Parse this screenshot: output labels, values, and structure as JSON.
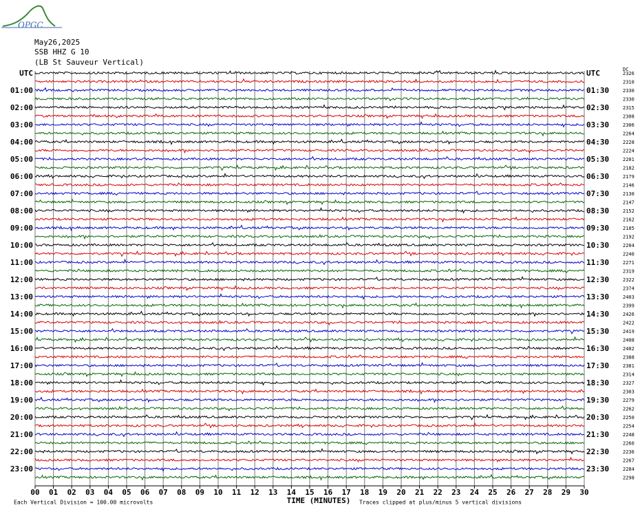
{
  "header": {
    "logo": "OPGC",
    "date": "May26,2025",
    "station": "SSB HHZ G 10",
    "location": "(LB St Sauveur Vertical)"
  },
  "left_labels": [
    "UTC",
    "01:00",
    "02:00",
    "03:00",
    "04:00",
    "05:00",
    "06:00",
    "07:00",
    "08:00",
    "09:00",
    "10:00",
    "11:00",
    "12:00",
    "13:00",
    "14:00",
    "15:00",
    "16:00",
    "17:00",
    "18:00",
    "19:00",
    "20:00",
    "21:00",
    "22:00",
    "23:00"
  ],
  "right_labels": [
    "UTC",
    "01:30",
    "02:30",
    "03:30",
    "04:30",
    "05:30",
    "06:30",
    "07:30",
    "08:30",
    "09:30",
    "10:30",
    "11:30",
    "12:30",
    "13:30",
    "14:30",
    "15:30",
    "16:30",
    "17:30",
    "18:30",
    "19:30",
    "20:30",
    "21:30",
    "22:30",
    "23:30"
  ],
  "dc_label": "DC",
  "offsets": [
    2326,
    2310,
    2330,
    2330,
    2315,
    2308,
    2306,
    2264,
    2228,
    2224,
    2201,
    2182,
    2179,
    2146,
    2130,
    2147,
    2152,
    2162,
    2185,
    2192,
    2204,
    2240,
    2271,
    2319,
    2322,
    2374,
    2403,
    2399,
    2426,
    2422,
    2419,
    2408,
    2402,
    2388,
    2381,
    2314,
    2327,
    2303,
    2279,
    2262,
    2250,
    2254,
    2248,
    2260,
    2236,
    2267,
    2284,
    2298
  ],
  "x_labels": [
    "00",
    "01",
    "02",
    "03",
    "04",
    "05",
    "06",
    "07",
    "08",
    "09",
    "10",
    "11",
    "12",
    "13",
    "14",
    "15",
    "16",
    "17",
    "18",
    "19",
    "20",
    "21",
    "22",
    "23",
    "24",
    "25",
    "26",
    "27",
    "28",
    "29",
    "30"
  ],
  "x_title": "TIME (MINUTES)",
  "footer_left": "Each Vertical Division =  100.00 microvolts",
  "footer_right": "Traces clipped at plus/minus 5 vertical divisions"
}
